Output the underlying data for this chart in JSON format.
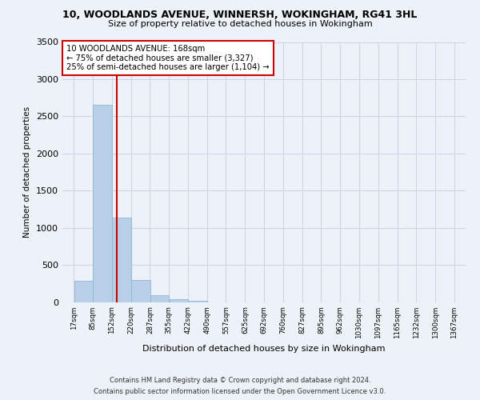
{
  "title_line1": "10, WOODLANDS AVENUE, WINNERSH, WOKINGHAM, RG41 3HL",
  "title_line2": "Size of property relative to detached houses in Wokingham",
  "xlabel": "Distribution of detached houses by size in Wokingham",
  "ylabel": "Number of detached properties",
  "footer_line1": "Contains HM Land Registry data © Crown copyright and database right 2024.",
  "footer_line2": "Contains public sector information licensed under the Open Government Licence v3.0.",
  "annotation_line1": "10 WOODLANDS AVENUE: 168sqm",
  "annotation_line2": "← 75% of detached houses are smaller (3,327)",
  "annotation_line3": "25% of semi-detached houses are larger (1,104) →",
  "property_size": 168,
  "bin_edges": [
    17,
    85,
    152,
    220,
    287,
    355,
    422,
    490,
    557,
    625,
    692,
    760,
    827,
    895,
    962,
    1030,
    1097,
    1165,
    1232,
    1300,
    1367
  ],
  "bin_counts": [
    290,
    2650,
    1140,
    300,
    90,
    40,
    20,
    0,
    0,
    0,
    0,
    0,
    0,
    0,
    0,
    0,
    0,
    0,
    0,
    0
  ],
  "bar_color": "#b8cfe8",
  "red_line_x": 168,
  "annotation_box_color": "#ffffff",
  "annotation_box_edge_color": "#cc0000",
  "red_line_color": "#cc0000",
  "grid_color": "#ccd6e8",
  "background_color": "#edf2f8",
  "ylim": [
    0,
    3500
  ],
  "yticks": [
    0,
    500,
    1000,
    1500,
    2000,
    2500,
    3000,
    3500
  ]
}
